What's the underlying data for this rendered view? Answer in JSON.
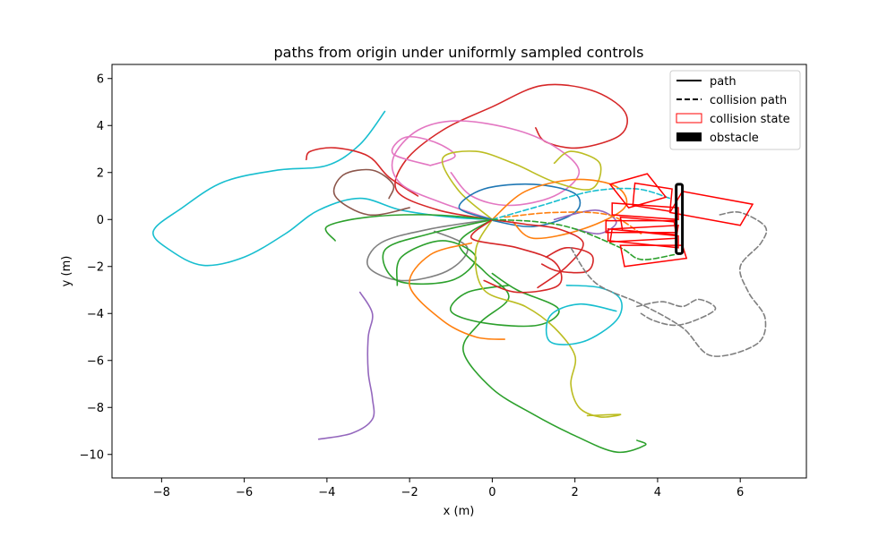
{
  "chart_data": {
    "type": "line",
    "title": "paths from origin under uniformly sampled controls",
    "xlabel": "x (m)",
    "ylabel": "y (m)",
    "xlim": [
      -9.2,
      7.6
    ],
    "ylim": [
      -11.0,
      6.6
    ],
    "xticks": [
      -8,
      -6,
      -4,
      -2,
      0,
      2,
      4,
      6
    ],
    "yticks": [
      -10,
      -8,
      -6,
      -4,
      -2,
      0,
      2,
      4,
      6
    ],
    "xtick_labels": [
      "−8",
      "−6",
      "−4",
      "−2",
      "0",
      "2",
      "4",
      "6"
    ],
    "ytick_labels": [
      "−10",
      "−8",
      "−6",
      "−4",
      "−2",
      "0",
      "2",
      "4",
      "6"
    ],
    "grid": false,
    "legend": {
      "position": "top-right",
      "entries": [
        {
          "label": "path",
          "style": "solid-line",
          "color": "#000000"
        },
        {
          "label": "collision path",
          "style": "dashed-line",
          "color": "#000000"
        },
        {
          "label": "collision state",
          "style": "outline-rect",
          "color": "#ff0000"
        },
        {
          "label": "obstacle",
          "style": "filled-rect",
          "color": "#000000"
        }
      ]
    },
    "obstacle": {
      "x": [
        4.45,
        4.6
      ],
      "y": [
        -1.45,
        1.5
      ],
      "color": "#000000"
    },
    "series": [
      {
        "color": "#17becf",
        "dashed": false,
        "points": [
          [
            0,
            0
          ],
          [
            -1,
            0.1
          ],
          [
            -2.2,
            0.4
          ],
          [
            -3.2,
            0.9
          ],
          [
            -4.2,
            0.4
          ],
          [
            -5,
            -0.6
          ],
          [
            -6,
            -1.6
          ],
          [
            -7,
            -1.95
          ],
          [
            -7.8,
            -1.3
          ],
          [
            -8.2,
            -0.5
          ],
          [
            -7.5,
            0.5
          ],
          [
            -6.5,
            1.6
          ],
          [
            -5.2,
            2.1
          ],
          [
            -4,
            2.3
          ],
          [
            -3.2,
            3.2
          ],
          [
            -2.6,
            4.6
          ]
        ]
      },
      {
        "color": "#d62728",
        "dashed": false,
        "points": [
          [
            0,
            0
          ],
          [
            -1.3,
            0.4
          ],
          [
            -2.3,
            1.2
          ],
          [
            -2.1,
            2.5
          ],
          [
            -1.2,
            3.8
          ],
          [
            0,
            4.8
          ],
          [
            1.2,
            5.7
          ],
          [
            2.4,
            5.5
          ],
          [
            3.2,
            4.6
          ],
          [
            3.1,
            3.6
          ],
          [
            2.1,
            3.05
          ],
          [
            1.3,
            3.3
          ],
          [
            1.05,
            3.9
          ]
        ]
      },
      {
        "color": "#d62728",
        "dashed": false,
        "points": [
          [
            -1.8,
            1.0
          ],
          [
            -2.5,
            1.8
          ],
          [
            -3.0,
            2.7
          ],
          [
            -3.8,
            3.05
          ],
          [
            -4.4,
            2.9
          ],
          [
            -4.5,
            2.55
          ]
        ]
      },
      {
        "color": "#e377c2",
        "dashed": false,
        "points": [
          [
            0,
            0
          ],
          [
            -1.2,
            0.7
          ],
          [
            -2.2,
            1.5
          ],
          [
            -2.4,
            2.6
          ],
          [
            -1.8,
            3.8
          ],
          [
            -0.8,
            4.2
          ],
          [
            0.6,
            3.8
          ],
          [
            1.6,
            3.0
          ],
          [
            2.1,
            2.0
          ],
          [
            1.5,
            1.0
          ],
          [
            0.4,
            0.6
          ],
          [
            -0.5,
            1.0
          ],
          [
            -1.0,
            2.0
          ]
        ]
      },
      {
        "color": "#e377c2",
        "dashed": false,
        "points": [
          [
            -1.5,
            2.3
          ],
          [
            -2.4,
            2.8
          ],
          [
            -2.1,
            3.5
          ],
          [
            -1.4,
            3.3
          ],
          [
            -0.9,
            2.7
          ],
          [
            -1.5,
            2.3
          ]
        ]
      },
      {
        "color": "#bcbd22",
        "dashed": false,
        "points": [
          [
            0,
            0
          ],
          [
            -0.8,
            1.2
          ],
          [
            -1.2,
            2.6
          ],
          [
            -0.4,
            2.9
          ],
          [
            0.5,
            2.4
          ],
          [
            1.5,
            1.6
          ],
          [
            2.4,
            1.3
          ],
          [
            2.6,
            2.4
          ],
          [
            1.9,
            2.9
          ],
          [
            1.5,
            2.4
          ]
        ]
      },
      {
        "color": "#8c564b",
        "dashed": false,
        "points": [
          [
            -2.0,
            0.5
          ],
          [
            -3.0,
            0.2
          ],
          [
            -3.8,
            1.0
          ],
          [
            -3.6,
            1.9
          ],
          [
            -2.9,
            2.1
          ],
          [
            -2.4,
            1.5
          ],
          [
            -2.5,
            0.9
          ]
        ]
      },
      {
        "color": "#2ca02c",
        "dashed": false,
        "points": [
          [
            0,
            0
          ],
          [
            -1.5,
            0.2
          ],
          [
            -3.0,
            0.1
          ],
          [
            -4.0,
            -0.3
          ],
          [
            -3.8,
            -0.9
          ]
        ]
      },
      {
        "color": "#1f77b4",
        "dashed": false,
        "points": [
          [
            0,
            0
          ],
          [
            -0.8,
            0.5
          ],
          [
            -0.2,
            1.3
          ],
          [
            1.0,
            1.5
          ],
          [
            2.0,
            1.1
          ],
          [
            2.0,
            0.3
          ],
          [
            1.0,
            -0.3
          ],
          [
            -0.1,
            0.0
          ]
        ]
      },
      {
        "color": "#ff7f0e",
        "dashed": false,
        "points": [
          [
            0,
            0
          ],
          [
            0.8,
            1.2
          ],
          [
            2.0,
            1.7
          ],
          [
            3.0,
            1.4
          ],
          [
            3.2,
            0.5
          ],
          [
            2.2,
            -0.4
          ],
          [
            1.0,
            -0.8
          ],
          [
            0.5,
            -0.1
          ]
        ]
      },
      {
        "color": "#9467bd",
        "dashed": false,
        "points": [
          [
            1.5,
            0
          ],
          [
            2.5,
            0.4
          ],
          [
            3.0,
            -0.1
          ],
          [
            2.6,
            -0.6
          ],
          [
            2.0,
            -0.4
          ]
        ]
      },
      {
        "color": "#7f7f7f",
        "dashed": false,
        "points": [
          [
            0,
            0
          ],
          [
            -1.5,
            -0.4
          ],
          [
            -2.7,
            -1.0
          ],
          [
            -3.0,
            -2.0
          ],
          [
            -2.2,
            -2.6
          ],
          [
            -1.1,
            -2.2
          ],
          [
            -0.6,
            -1.2
          ],
          [
            -1.4,
            -0.5
          ]
        ]
      },
      {
        "color": "#2ca02c",
        "dashed": false,
        "points": [
          [
            0,
            0
          ],
          [
            -1.5,
            -0.6
          ],
          [
            -2.6,
            -1.3
          ],
          [
            -2.3,
            -2.6
          ],
          [
            -1.0,
            -2.6
          ],
          [
            -0.4,
            -1.6
          ],
          [
            -1.2,
            -0.9
          ],
          [
            -2.2,
            -1.6
          ],
          [
            -2.3,
            -2.8
          ]
        ]
      },
      {
        "color": "#2ca02c",
        "dashed": false,
        "points": [
          [
            0,
            0
          ],
          [
            -0.8,
            -1.0
          ],
          [
            -0.2,
            -2.2
          ],
          [
            0.4,
            -3.3
          ],
          [
            -0.3,
            -4.4
          ],
          [
            -0.7,
            -5.6
          ],
          [
            0,
            -7.2
          ],
          [
            1.0,
            -8.3
          ],
          [
            2.0,
            -9.2
          ],
          [
            3.0,
            -9.9
          ],
          [
            3.7,
            -9.6
          ],
          [
            3.5,
            -9.4
          ]
        ]
      },
      {
        "color": "#2ca02c",
        "dashed": false,
        "points": [
          [
            0,
            -2.3
          ],
          [
            0.6,
            -3.0
          ],
          [
            1.6,
            -3.8
          ],
          [
            1.1,
            -4.5
          ],
          [
            -0.2,
            -4.4
          ],
          [
            -1.0,
            -3.9
          ],
          [
            -0.6,
            -3.1
          ],
          [
            0.4,
            -2.8
          ]
        ]
      },
      {
        "color": "#ff7f0e",
        "dashed": false,
        "points": [
          [
            -0.5,
            -1.0
          ],
          [
            -1.5,
            -1.5
          ],
          [
            -2.0,
            -2.8
          ],
          [
            -1.2,
            -4.3
          ],
          [
            -0.4,
            -5.0
          ],
          [
            0.3,
            -5.1
          ]
        ]
      },
      {
        "color": "#bcbd22",
        "dashed": false,
        "points": [
          [
            0,
            0
          ],
          [
            -0.4,
            -1.3
          ],
          [
            -0.2,
            -3.0
          ],
          [
            0.8,
            -3.7
          ],
          [
            1.5,
            -4.6
          ],
          [
            2.0,
            -5.8
          ],
          [
            1.9,
            -7.0
          ],
          [
            2.1,
            -8.0
          ],
          [
            2.6,
            -8.4
          ],
          [
            3.1,
            -8.3
          ],
          [
            2.3,
            -8.35
          ]
        ]
      },
      {
        "color": "#9467bd",
        "dashed": false,
        "points": [
          [
            -3.2,
            -3.1
          ],
          [
            -2.9,
            -4.0
          ],
          [
            -3.0,
            -5.0
          ],
          [
            -3.0,
            -6.5
          ],
          [
            -2.9,
            -7.6
          ],
          [
            -2.9,
            -8.5
          ],
          [
            -3.4,
            -9.1
          ],
          [
            -4.2,
            -9.35
          ]
        ]
      },
      {
        "color": "#d62728",
        "dashed": false,
        "points": [
          [
            1.3,
            -1.6
          ],
          [
            1.8,
            -1.2
          ],
          [
            2.4,
            -1.5
          ],
          [
            2.3,
            -2.2
          ],
          [
            1.6,
            -2.2
          ],
          [
            1.2,
            -1.9
          ]
        ]
      },
      {
        "color": "#d62728",
        "dashed": false,
        "points": [
          [
            0,
            0
          ],
          [
            -0.5,
            -0.8
          ],
          [
            0.6,
            -1.2
          ],
          [
            1.5,
            -1.8
          ],
          [
            1.6,
            -2.8
          ],
          [
            0.6,
            -3.1
          ],
          [
            -0.2,
            -2.6
          ]
        ]
      },
      {
        "color": "#17becf",
        "dashed": false,
        "points": [
          [
            1.8,
            -2.8
          ],
          [
            2.6,
            -2.9
          ],
          [
            3.1,
            -3.4
          ],
          [
            3.0,
            -4.3
          ],
          [
            2.2,
            -5.2
          ],
          [
            1.4,
            -5.2
          ],
          [
            1.4,
            -4.1
          ],
          [
            2.1,
            -3.6
          ],
          [
            3.0,
            -3.9
          ]
        ]
      },
      {
        "color": "#d62728",
        "dashed": false,
        "points": [
          [
            0,
            0
          ],
          [
            0.8,
            -0.2
          ],
          [
            1.6,
            -0.4
          ],
          [
            2.2,
            -1.0
          ],
          [
            1.8,
            -2.0
          ],
          [
            1.1,
            -2.9
          ]
        ]
      },
      {
        "color": "#17becf",
        "dashed": true,
        "points": [
          [
            0,
            0
          ],
          [
            1.2,
            0.6
          ],
          [
            2.4,
            1.2
          ],
          [
            3.5,
            1.3
          ],
          [
            4.3,
            0.9
          ]
        ]
      },
      {
        "color": "#2ca02c",
        "dashed": true,
        "points": [
          [
            0,
            0
          ],
          [
            1.1,
            -0.1
          ],
          [
            2.0,
            -0.4
          ],
          [
            3.1,
            -1.2
          ],
          [
            3.6,
            -1.7
          ],
          [
            4.4,
            -1.5
          ]
        ]
      },
      {
        "color": "#ff7f0e",
        "dashed": true,
        "points": [
          [
            0.3,
            0.1
          ],
          [
            1.5,
            0.3
          ],
          [
            2.8,
            0.2
          ],
          [
            3.6,
            -0.6
          ]
        ]
      },
      {
        "color": "#7f7f7f",
        "dashed": true,
        "points": [
          [
            1.9,
            -1.2
          ],
          [
            2.5,
            -2.7
          ],
          [
            3.6,
            -3.6
          ],
          [
            4.6,
            -4.6
          ],
          [
            5.3,
            -5.8
          ],
          [
            6.4,
            -5.3
          ],
          [
            6.6,
            -4.2
          ],
          [
            6.2,
            -3.1
          ],
          [
            6.0,
            -2.0
          ],
          [
            6.5,
            -1.0
          ],
          [
            6.6,
            -0.3
          ],
          [
            6.0,
            0.3
          ],
          [
            5.5,
            0.2
          ]
        ]
      },
      {
        "color": "#7f7f7f",
        "dashed": true,
        "points": [
          [
            3.5,
            -3.7
          ],
          [
            4.1,
            -3.5
          ],
          [
            4.6,
            -3.7
          ],
          [
            5.0,
            -3.4
          ],
          [
            5.4,
            -3.8
          ],
          [
            4.9,
            -4.3
          ],
          [
            4.4,
            -4.5
          ],
          [
            3.9,
            -4.3
          ],
          [
            3.6,
            -4.0
          ]
        ]
      }
    ],
    "collision_states": [
      {
        "corners": [
          [
            2.85,
            1.5
          ],
          [
            3.75,
            1.95
          ],
          [
            4.2,
            0.95
          ],
          [
            3.3,
            0.5
          ]
        ]
      },
      {
        "corners": [
          [
            3.45,
            1.55
          ],
          [
            4.35,
            1.3
          ],
          [
            4.3,
            0.35
          ],
          [
            3.4,
            0.6
          ]
        ]
      },
      {
        "corners": [
          [
            4.6,
            1.2
          ],
          [
            6.3,
            0.65
          ],
          [
            6.0,
            -0.25
          ],
          [
            4.3,
            0.3
          ]
        ]
      },
      {
        "corners": [
          [
            2.9,
            0.7
          ],
          [
            4.5,
            0.5
          ],
          [
            4.5,
            0.0
          ],
          [
            2.9,
            0.2
          ]
        ]
      },
      {
        "corners": [
          [
            2.75,
            -0.05
          ],
          [
            4.45,
            -0.05
          ],
          [
            4.45,
            -0.55
          ],
          [
            2.75,
            -0.55
          ]
        ]
      },
      {
        "corners": [
          [
            3.1,
            0.1
          ],
          [
            4.4,
            -0.1
          ],
          [
            4.45,
            -0.65
          ],
          [
            3.15,
            -0.45
          ]
        ]
      },
      {
        "corners": [
          [
            2.9,
            -0.4
          ],
          [
            4.5,
            -0.25
          ],
          [
            4.45,
            -0.8
          ],
          [
            2.85,
            -0.95
          ]
        ]
      },
      {
        "corners": [
          [
            2.8,
            -0.9
          ],
          [
            4.5,
            -1.2
          ],
          [
            4.5,
            -0.7
          ],
          [
            2.8,
            -0.4
          ]
        ]
      },
      {
        "corners": [
          [
            3.1,
            -1.1
          ],
          [
            4.6,
            -1.1
          ],
          [
            4.7,
            -1.65
          ],
          [
            3.2,
            -2.0
          ]
        ]
      }
    ]
  }
}
